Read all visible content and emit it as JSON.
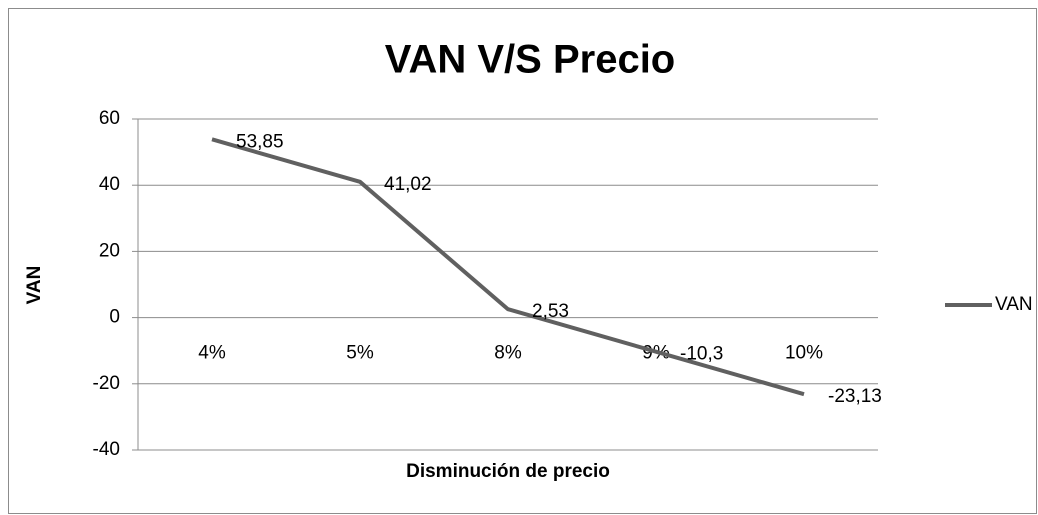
{
  "chart_data": {
    "type": "line",
    "title": "VAN V/S Precio",
    "x_label": "Disminución de precio",
    "y_label": "VAN",
    "categories": [
      "4%",
      "5%",
      "8%",
      "9%",
      "10%"
    ],
    "series": [
      {
        "name": "VAN",
        "color": "#606060",
        "values": [
          53.85,
          41.02,
          2.53,
          -10.3,
          -23.13
        ],
        "value_labels": [
          "53,85",
          "41,02",
          "2,53",
          "-10,3",
          "-23,13"
        ]
      }
    ],
    "ylim": [
      -40,
      60
    ],
    "yticks": [
      -40,
      -20,
      0,
      20,
      40,
      60
    ],
    "grid": true,
    "legend": "right"
  }
}
